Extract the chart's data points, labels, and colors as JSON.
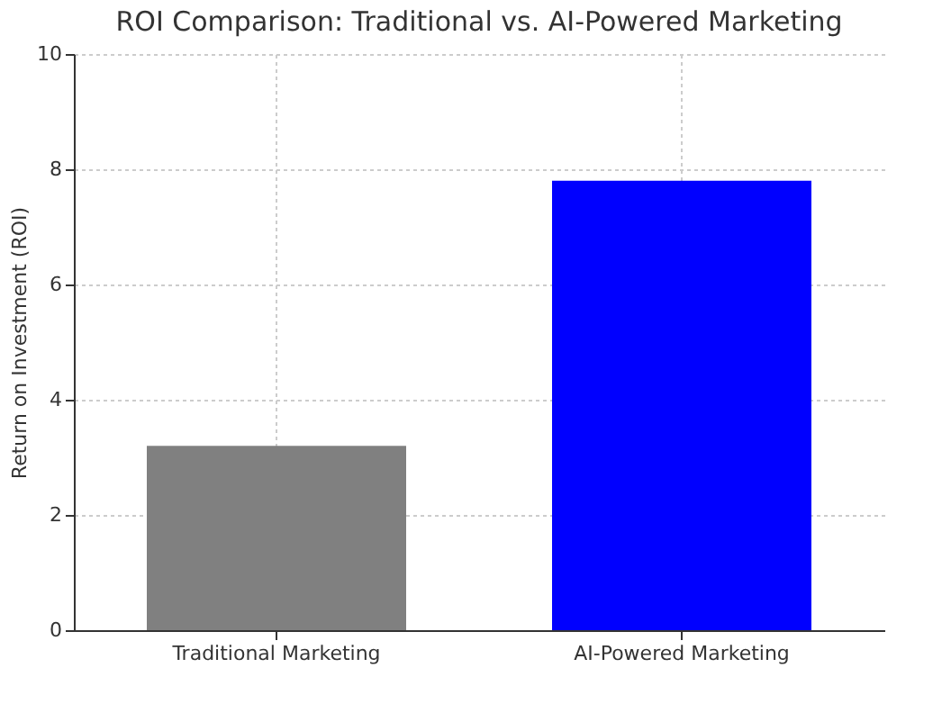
{
  "chart_data": {
    "type": "bar",
    "title": "ROI Comparison: Traditional vs. AI-Powered Marketing",
    "ylabel": "Return on Investment (ROI)",
    "categories": [
      "Traditional Marketing",
      "AI-Powered Marketing"
    ],
    "values": [
      3.2,
      7.8
    ],
    "colors": [
      "#808080",
      "#0000ff"
    ],
    "ylim": [
      0,
      10
    ],
    "yticks": [
      0,
      2,
      4,
      6,
      8,
      10
    ],
    "grid": true
  }
}
